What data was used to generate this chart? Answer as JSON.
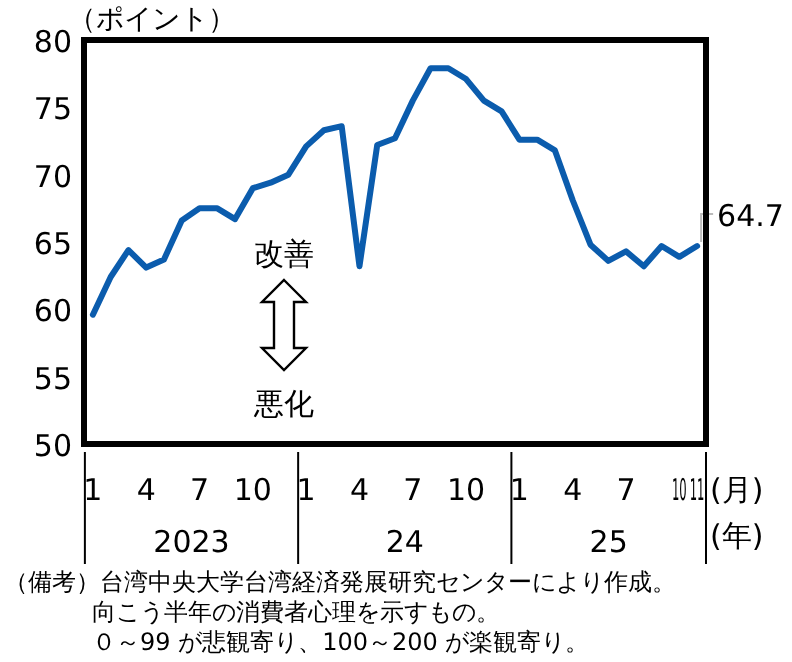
{
  "chart_data": {
    "type": "line",
    "ylabel": "（ポイント）",
    "xlabel": "(月)",
    "x": [
      "2023-01",
      "2023-02",
      "2023-03",
      "2023-04",
      "2023-05",
      "2023-06",
      "2023-07",
      "2023-08",
      "2023-09",
      "2023-10",
      "2023-11",
      "2023-12",
      "2024-01",
      "2024-02",
      "2024-03",
      "2024-04",
      "2024-05",
      "2024-06",
      "2024-07",
      "2024-08",
      "2024-09",
      "2024-10",
      "2024-11",
      "2024-12",
      "2025-01",
      "2025-02",
      "2025-03",
      "2025-04",
      "2025-05",
      "2025-06",
      "2025-07",
      "2025-08",
      "2025-09",
      "2025-10",
      "2025-11"
    ],
    "series": [
      {
        "color": "#0b5cad",
        "values": [
          59.6,
          62.4,
          64.4,
          63.1,
          63.7,
          66.6,
          67.5,
          67.5,
          66.7,
          69.0,
          69.4,
          70.0,
          72.1,
          73.3,
          73.6,
          63.2,
          72.2,
          72.7,
          75.5,
          77.9,
          77.9,
          77.1,
          75.5,
          74.7,
          72.6,
          72.6,
          71.8,
          68.1,
          64.8,
          63.6,
          64.3,
          63.2,
          64.7,
          63.9,
          64.7
        ],
        "value_labels": [
          null,
          null,
          null,
          null,
          null,
          null,
          null,
          null,
          null,
          null,
          null,
          null,
          null,
          null,
          null,
          null,
          null,
          null,
          null,
          null,
          null,
          null,
          null,
          null,
          null,
          null,
          null,
          null,
          null,
          null,
          null,
          null,
          null,
          null,
          "64.7"
        ]
      }
    ],
    "xlim": [
      "2022-12-16",
      "2025-11-16"
    ],
    "xticks": [
      {
        "value": "2023-01",
        "label": "1"
      },
      {
        "value": "2023-04",
        "label": "4"
      },
      {
        "value": "2023-07",
        "label": "7"
      },
      {
        "value": "2023-10",
        "label": "10"
      },
      {
        "value": "2024-01",
        "label": "1"
      },
      {
        "value": "2024-04",
        "label": "4"
      },
      {
        "value": "2024-07",
        "label": "7"
      },
      {
        "value": "2024-10",
        "label": "10"
      },
      {
        "value": "2025-01",
        "label": "1"
      },
      {
        "value": "2025-04",
        "label": "4"
      },
      {
        "value": "2025-07",
        "label": "7"
      },
      {
        "value": "2025-10",
        "label": "10"
      },
      {
        "value": "2025-11",
        "label": "11"
      }
    ],
    "ylim": [
      50,
      80
    ],
    "yticks": [
      50,
      55,
      60,
      65,
      70,
      75,
      80
    ],
    "grid": false,
    "marker": "none",
    "line_style": "solid",
    "annotations": [
      "2023",
      "24",
      "25",
      "(年)",
      "改善",
      "悪化",
      "（備考）台湾中央大学台湾経済発展研究センターにより作成。",
      "向こう半年の消費者心理を示すもの。",
      "０～99 が悲観寄り、100～200 が楽観寄り。"
    ]
  }
}
